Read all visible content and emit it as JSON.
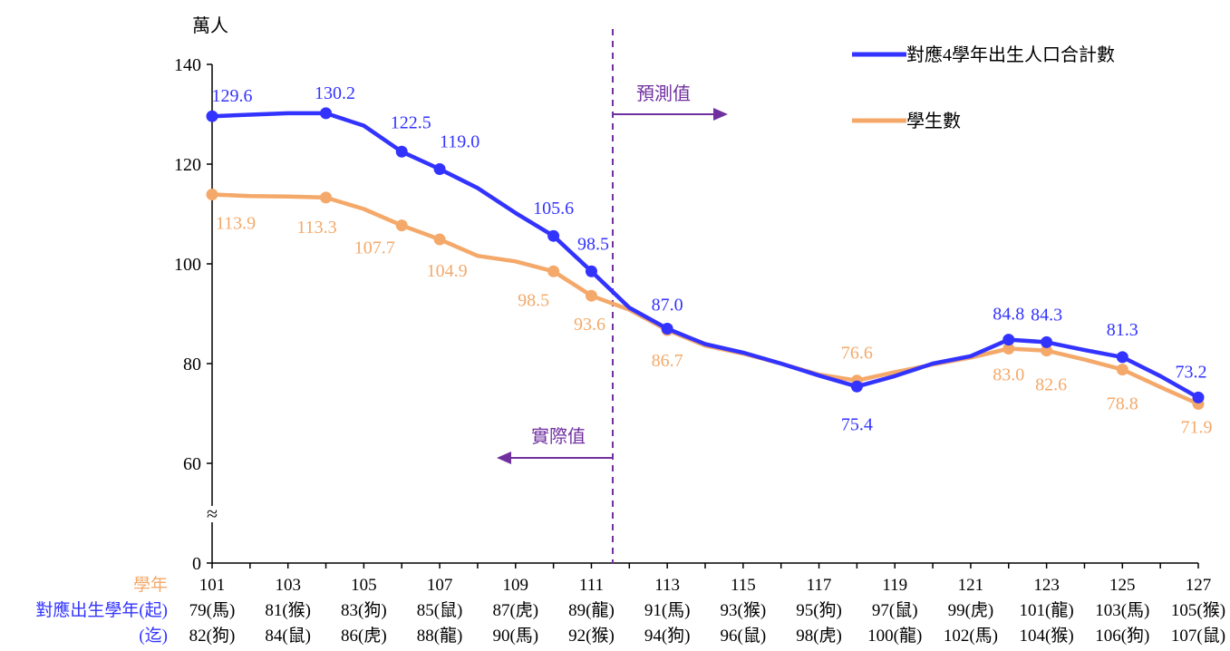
{
  "chart_data": {
    "type": "line",
    "ylabel": "萬人",
    "ylim": [
      0,
      140
    ],
    "y_ticks": [
      "0",
      "60",
      "80",
      "100",
      "120",
      "140"
    ],
    "axis_break_symbol": "≈",
    "x": [
      101,
      102,
      103,
      104,
      105,
      106,
      107,
      108,
      109,
      110,
      111,
      112,
      113,
      114,
      115,
      116,
      117,
      118,
      119,
      120,
      121,
      122,
      123,
      124,
      125,
      126,
      127
    ],
    "x_ticks": [
      "101",
      "103",
      "105",
      "107",
      "109",
      "111",
      "113",
      "115",
      "117",
      "119",
      "121",
      "123",
      "125",
      "127"
    ],
    "x_row_labels": {
      "school_year": "學年",
      "birth_start": "對應出生學年(起)",
      "birth_end": "(迄)"
    },
    "birth_start_labels": [
      "79(馬)",
      "81(猴)",
      "83(狗)",
      "85(鼠)",
      "87(虎)",
      "89(龍)",
      "91(馬)",
      "93(猴)",
      "95(狗)",
      "97(鼠)",
      "99(虎)",
      "101(龍)",
      "103(馬)",
      "105(猴)"
    ],
    "birth_end_labels": [
      "82(狗)",
      "84(鼠)",
      "86(虎)",
      "88(龍)",
      "90(馬)",
      "92(猴)",
      "94(狗)",
      "96(鼠)",
      "98(虎)",
      "100(龍)",
      "102(馬)",
      "104(猴)",
      "106(狗)",
      "107(鼠)"
    ],
    "series": [
      {
        "name": "對應4學年出生人口合計數",
        "color": "#3333ff",
        "values": [
          129.6,
          129.9,
          130.2,
          130.2,
          127.7,
          122.5,
          119.0,
          115.2,
          110.2,
          105.6,
          98.5,
          91.2,
          87.0,
          83.9,
          82.2,
          80.0,
          77.6,
          75.4,
          77.5,
          80.0,
          81.5,
          84.8,
          84.3,
          82.7,
          81.3,
          77.5,
          73.2
        ],
        "marked": [
          101,
          104,
          106,
          107,
          110,
          111,
          113,
          118,
          122,
          123,
          125,
          127
        ],
        "labels": [
          {
            "x": 101,
            "text": "129.6"
          },
          {
            "x": 104,
            "text": "130.2"
          },
          {
            "x": 106,
            "text": "122.5"
          },
          {
            "x": 107,
            "text": "119.0"
          },
          {
            "x": 110,
            "text": "105.6"
          },
          {
            "x": 111,
            "text": "98.5"
          },
          {
            "x": 113,
            "text": "87.0"
          },
          {
            "x": 118,
            "text": "75.4"
          },
          {
            "x": 122,
            "text": "84.8"
          },
          {
            "x": 123,
            "text": "84.3"
          },
          {
            "x": 125,
            "text": "81.3"
          },
          {
            "x": 127,
            "text": "73.2"
          }
        ]
      },
      {
        "name": "學生數",
        "color": "#f4a96a",
        "values": [
          113.9,
          113.6,
          113.5,
          113.3,
          111.0,
          107.7,
          104.9,
          101.6,
          100.5,
          98.5,
          93.6,
          90.8,
          86.7,
          83.6,
          82.0,
          80.0,
          77.8,
          76.6,
          78.3,
          79.8,
          81.2,
          83.0,
          82.6,
          80.8,
          78.8,
          75.3,
          71.9
        ],
        "marked": [
          101,
          104,
          106,
          107,
          110,
          111,
          113,
          118,
          122,
          123,
          125,
          127
        ],
        "labels": [
          {
            "x": 101,
            "text": "113.9"
          },
          {
            "x": 104,
            "text": "113.3"
          },
          {
            "x": 106,
            "text": "107.7"
          },
          {
            "x": 107,
            "text": "104.9"
          },
          {
            "x": 110,
            "text": "98.5"
          },
          {
            "x": 111,
            "text": "93.6"
          },
          {
            "x": 113,
            "text": "86.7"
          },
          {
            "x": 118,
            "text": "76.6"
          },
          {
            "x": 122,
            "text": "83.0"
          },
          {
            "x": 123,
            "text": "82.6"
          },
          {
            "x": 125,
            "text": "78.8"
          },
          {
            "x": 127,
            "text": "71.9"
          }
        ]
      }
    ],
    "annotations": {
      "actual": "實際值",
      "forecast": "預測值"
    },
    "colors": {
      "blue": "#3333ff",
      "orange": "#f4a96a",
      "purple": "#7030a0",
      "axis": "#000000"
    },
    "legend_position": "top-right"
  }
}
